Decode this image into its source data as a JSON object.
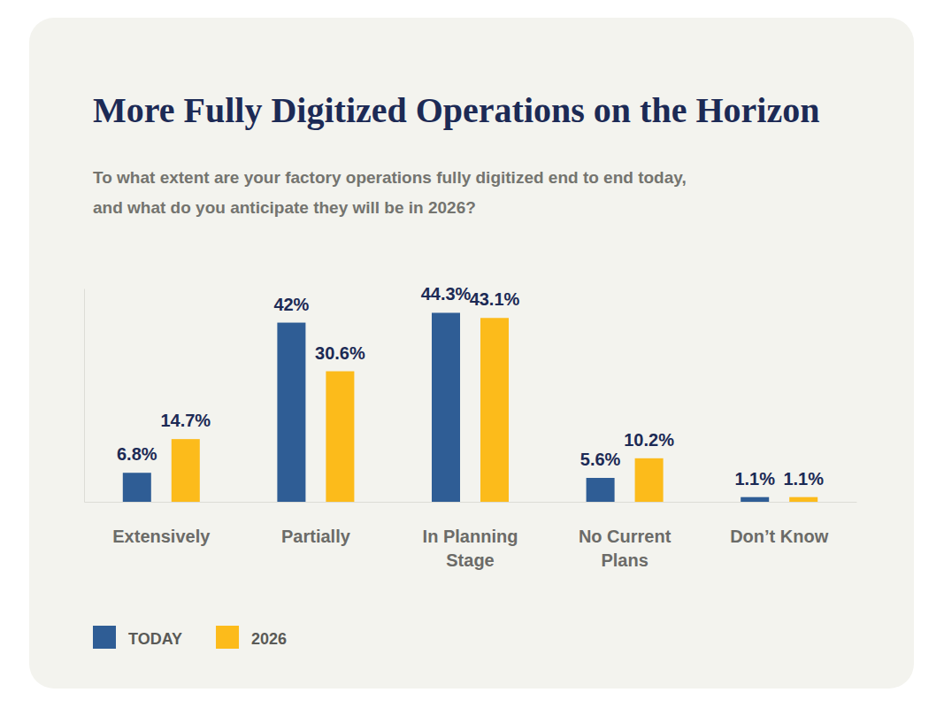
{
  "chart_data": {
    "type": "bar",
    "title": "More Fully Digitized Operations on the Horizon",
    "subtitle": [
      "To what extent are your factory operations fully digitized end to end today,",
      "and what do you anticipate they will be in 2026?"
    ],
    "categories": [
      "Extensively",
      "Partially",
      "In Planning Stage",
      "No Current Plans",
      "Don’t Know"
    ],
    "series": [
      {
        "name": "TODAY",
        "color": "#2f5d95",
        "values": [
          6.8,
          42,
          44.3,
          5.6,
          1.1
        ],
        "value_labels": [
          "6.8%",
          "42%",
          "44.3%",
          "5.6%",
          "1.1%"
        ]
      },
      {
        "name": "2026",
        "color": "#fcbb1b",
        "values": [
          14.7,
          30.6,
          43.1,
          10.2,
          1.1
        ],
        "value_labels": [
          "14.7%",
          "30.6%",
          "43.1%",
          "10.2%",
          "1.1%"
        ]
      }
    ],
    "ylim": [
      0,
      50
    ],
    "tick_labels": "x",
    "data_labels": true,
    "legend": "bottom",
    "grid": false
  }
}
